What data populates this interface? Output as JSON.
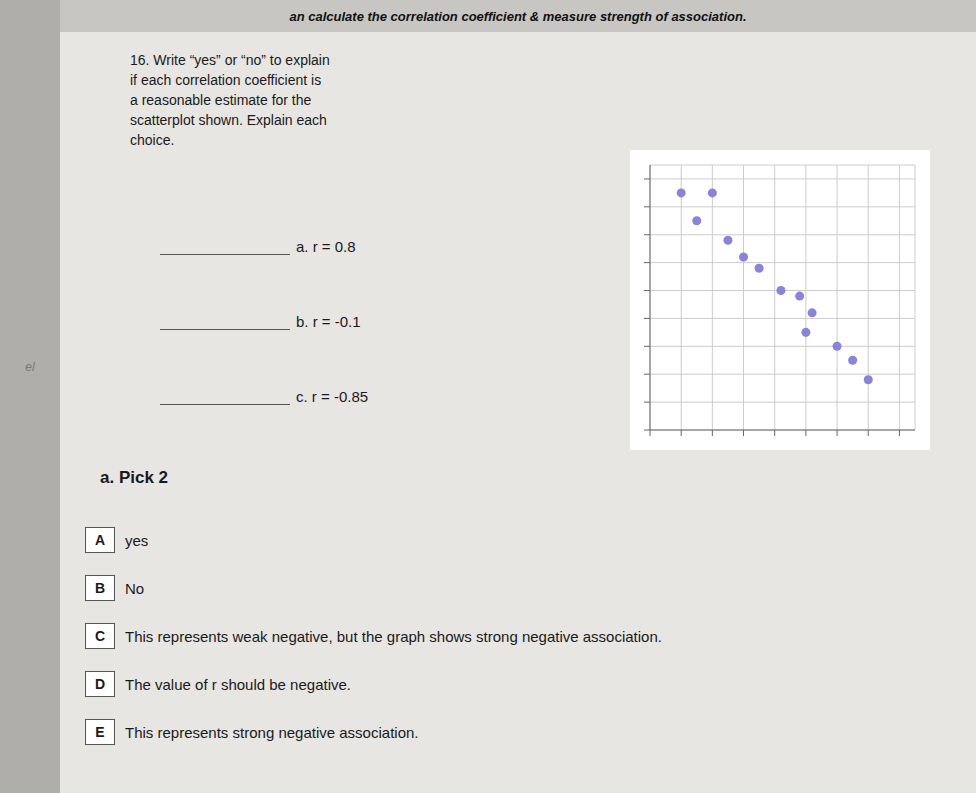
{
  "chart_data": {
    "type": "scatter",
    "title": "an calculate the correlation coefficient & measure strength of association.",
    "annotations": [
      "16. Write “yes” or “no” to explain\nif each correlation coefficient is\na reasonable estimate for the\nscatterplot shown. Explain each\nchoice.",
      "a. r = 0.8",
      "b. r = -0.1",
      "c. r = -0.85",
      "a. Pick 2",
      "A",
      "yes",
      "B",
      "No",
      "C",
      "This represents weak negative, but the graph shows strong negative association.",
      "D",
      "The value of r should be negative.",
      "E",
      "This represents strong negative association.",
      "el"
    ],
    "x": [
      1,
      2,
      1.5,
      2.5,
      3,
      3.5,
      4.2,
      4.8,
      5.2,
      5.0,
      6.0,
      6.5,
      7.0
    ],
    "values": [
      8.5,
      8.5,
      7.5,
      6.8,
      6.2,
      5.8,
      5.0,
      4.8,
      4.2,
      3.5,
      3.0,
      2.5,
      1.8
    ],
    "xlim": [
      0,
      8.5
    ],
    "ylim": [
      0,
      9.5
    ],
    "xticks": [
      0,
      1,
      2,
      3,
      4,
      5,
      6,
      7,
      8
    ],
    "yticks": [
      0,
      1,
      2,
      3,
      4,
      5,
      6,
      7,
      8,
      9
    ],
    "grid": true,
    "tick_labels": false
  }
}
